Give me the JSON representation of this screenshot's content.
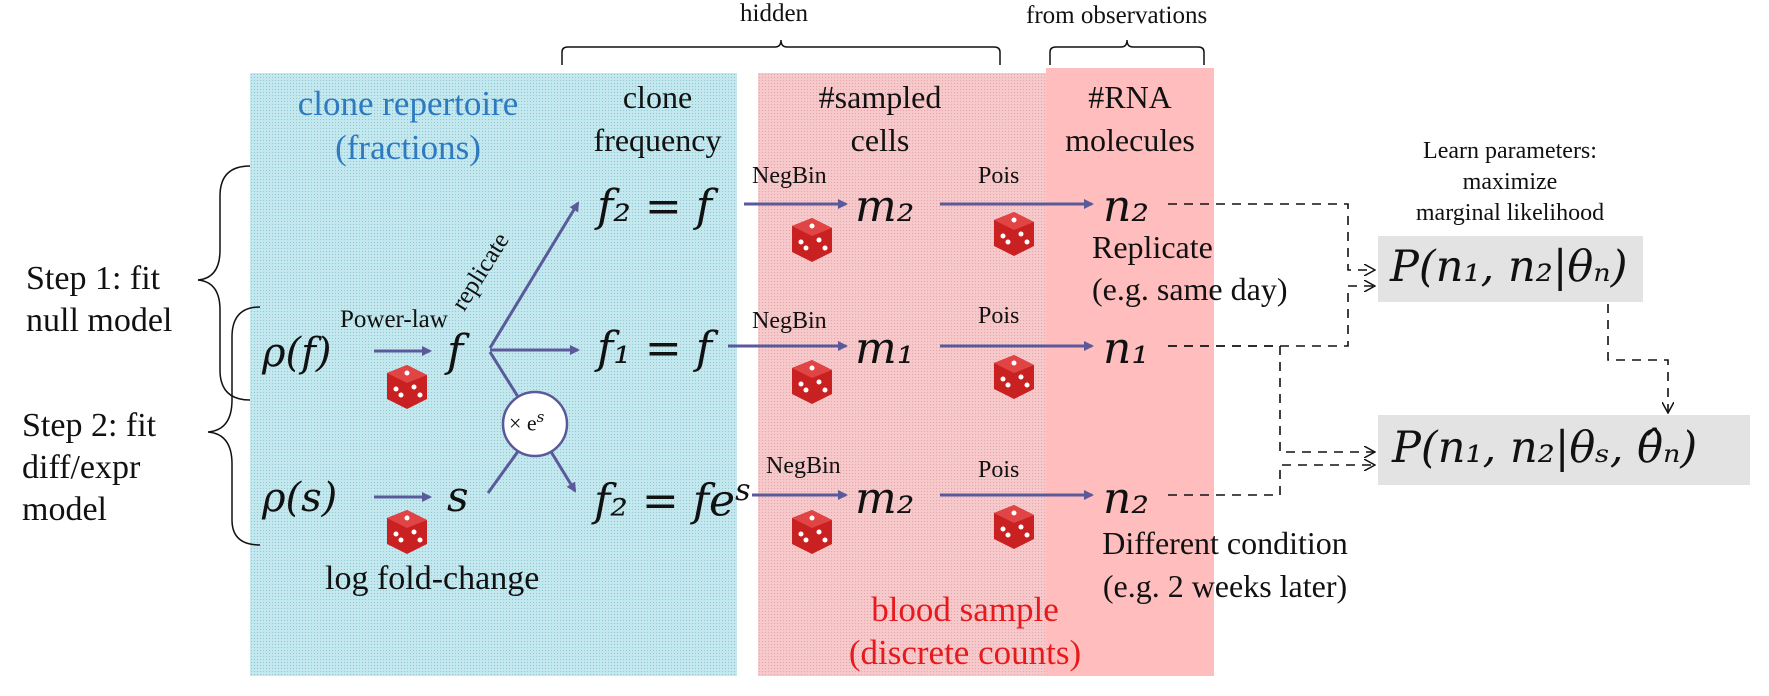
{
  "brackets": {
    "hidden": "hidden",
    "from_observations": "from observations"
  },
  "columns": {
    "clone_repertoire": "clone repertoire\n(fractions)",
    "clone_frequency": "clone\nfrequency",
    "sampled_cells": "#sampled\ncells",
    "rna_molecules": "#RNA\nmolecules"
  },
  "steps": {
    "step1": "Step 1: fit\nnull model",
    "step2": "Step 2: fit\ndiff/expr\nmodel"
  },
  "priors": {
    "rho_f": "ρ(f)",
    "rho_s": "ρ(s)",
    "power_law": "Power-law",
    "f": "f",
    "s": "s",
    "log_fold_change": "log fold-change",
    "replicate": "replicate",
    "times_es": "× e",
    "times_es_sup": "s"
  },
  "frequencies": {
    "row1": "f₂ = f",
    "row2": "f₁ = f",
    "row3": "f₂ = fe",
    "row3_sup": "s"
  },
  "distributions": {
    "negbin": "NegBin",
    "pois": "Pois"
  },
  "cells": {
    "row1": "m₂",
    "row2": "m₁",
    "row3": "m₂"
  },
  "molecules": {
    "row1": "n₂",
    "row2": "n₁",
    "row3": "n₂"
  },
  "annotations": {
    "replicate": "Replicate\n(e.g. same day)",
    "different_condition": "Different condition\n(e.g. 2 weeks later)",
    "blood_sample": "blood sample\n(discrete counts)",
    "learn_parameters": "Learn parameters:\nmaximize\nmarginal likelihood"
  },
  "likelihoods": {
    "null": "P(n₁, n₂|θₙ)",
    "diff": "P(n₁, n₂|θₛ, θ̂ₙ)"
  },
  "colors": {
    "clone_panel": "#bfe6ec",
    "sample_panel": "#f4c4c6",
    "observed_panel": "#ffbfbf",
    "arrow": "#5a5a9a",
    "title_blue": "#2e79c0",
    "title_red": "#e8191c",
    "result_box": "#e2e2e2",
    "dice": "#d42a2a"
  }
}
